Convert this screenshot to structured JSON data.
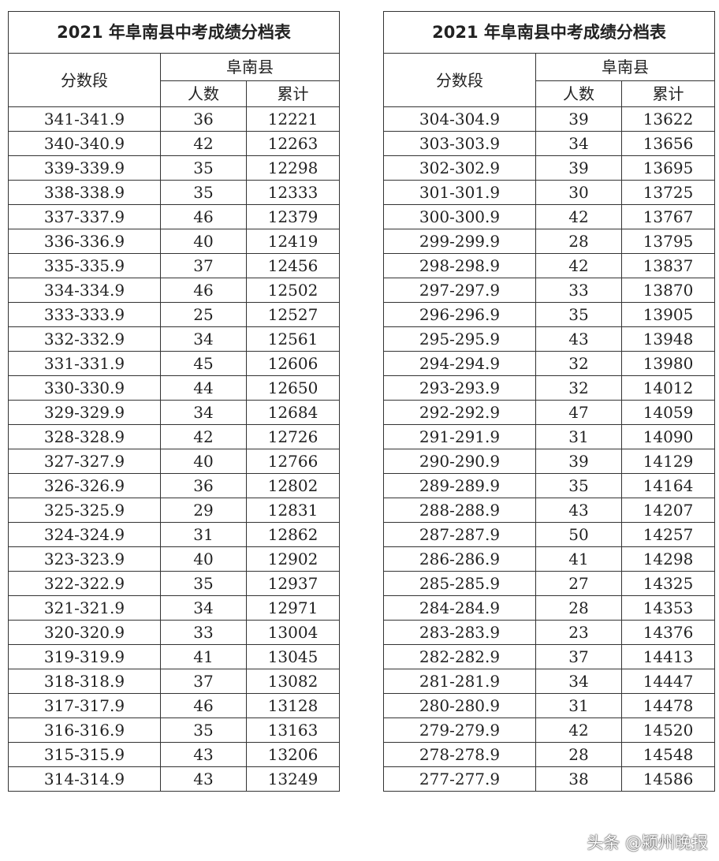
{
  "tables": [
    {
      "title": "2021 年阜南县中考成绩分档表",
      "col_score": "分数段",
      "col_group": "阜南县",
      "col_count": "人数",
      "col_cum": "累计",
      "rows": [
        [
          "341-341.9",
          "36",
          "12221"
        ],
        [
          "340-340.9",
          "42",
          "12263"
        ],
        [
          "339-339.9",
          "35",
          "12298"
        ],
        [
          "338-338.9",
          "35",
          "12333"
        ],
        [
          "337-337.9",
          "46",
          "12379"
        ],
        [
          "336-336.9",
          "40",
          "12419"
        ],
        [
          "335-335.9",
          "37",
          "12456"
        ],
        [
          "334-334.9",
          "46",
          "12502"
        ],
        [
          "333-333.9",
          "25",
          "12527"
        ],
        [
          "332-332.9",
          "34",
          "12561"
        ],
        [
          "331-331.9",
          "45",
          "12606"
        ],
        [
          "330-330.9",
          "44",
          "12650"
        ],
        [
          "329-329.9",
          "34",
          "12684"
        ],
        [
          "328-328.9",
          "42",
          "12726"
        ],
        [
          "327-327.9",
          "40",
          "12766"
        ],
        [
          "326-326.9",
          "36",
          "12802"
        ],
        [
          "325-325.9",
          "29",
          "12831"
        ],
        [
          "324-324.9",
          "31",
          "12862"
        ],
        [
          "323-323.9",
          "40",
          "12902"
        ],
        [
          "322-322.9",
          "35",
          "12937"
        ],
        [
          "321-321.9",
          "34",
          "12971"
        ],
        [
          "320-320.9",
          "33",
          "13004"
        ],
        [
          "319-319.9",
          "41",
          "13045"
        ],
        [
          "318-318.9",
          "37",
          "13082"
        ],
        [
          "317-317.9",
          "46",
          "13128"
        ],
        [
          "316-316.9",
          "35",
          "13163"
        ],
        [
          "315-315.9",
          "43",
          "13206"
        ],
        [
          "314-314.9",
          "43",
          "13249"
        ]
      ]
    },
    {
      "title": "2021 年阜南县中考成绩分档表",
      "col_score": "分数段",
      "col_group": "阜南县",
      "col_count": "人数",
      "col_cum": "累计",
      "rows": [
        [
          "304-304.9",
          "39",
          "13622"
        ],
        [
          "303-303.9",
          "34",
          "13656"
        ],
        [
          "302-302.9",
          "39",
          "13695"
        ],
        [
          "301-301.9",
          "30",
          "13725"
        ],
        [
          "300-300.9",
          "42",
          "13767"
        ],
        [
          "299-299.9",
          "28",
          "13795"
        ],
        [
          "298-298.9",
          "42",
          "13837"
        ],
        [
          "297-297.9",
          "33",
          "13870"
        ],
        [
          "296-296.9",
          "35",
          "13905"
        ],
        [
          "295-295.9",
          "43",
          "13948"
        ],
        [
          "294-294.9",
          "32",
          "13980"
        ],
        [
          "293-293.9",
          "32",
          "14012"
        ],
        [
          "292-292.9",
          "47",
          "14059"
        ],
        [
          "291-291.9",
          "31",
          "14090"
        ],
        [
          "290-290.9",
          "39",
          "14129"
        ],
        [
          "289-289.9",
          "35",
          "14164"
        ],
        [
          "288-288.9",
          "43",
          "14207"
        ],
        [
          "287-287.9",
          "50",
          "14257"
        ],
        [
          "286-286.9",
          "41",
          "14298"
        ],
        [
          "285-285.9",
          "27",
          "14325"
        ],
        [
          "284-284.9",
          "28",
          "14353"
        ],
        [
          "283-283.9",
          "23",
          "14376"
        ],
        [
          "282-282.9",
          "37",
          "14413"
        ],
        [
          "281-281.9",
          "34",
          "14447"
        ],
        [
          "280-280.9",
          "31",
          "14478"
        ],
        [
          "279-279.9",
          "42",
          "14520"
        ],
        [
          "278-278.9",
          "28",
          "14548"
        ],
        [
          "277-277.9",
          "38",
          "14586"
        ]
      ]
    }
  ],
  "watermark": "头条 @颍州晚报"
}
